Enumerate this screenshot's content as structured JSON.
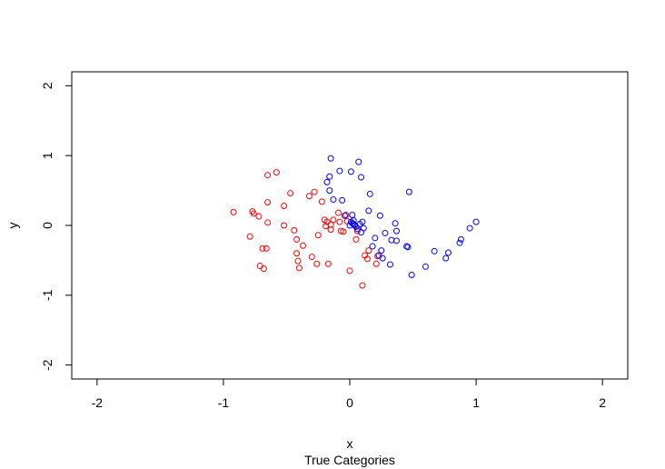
{
  "chart_data": {
    "type": "scatter",
    "xlabel": "x",
    "ylabel": "y",
    "subtitle": "True Categories",
    "xlim": [
      -2.2,
      2.2
    ],
    "ylim": [
      -2.2,
      2.2
    ],
    "xticks": [
      -2,
      -1,
      0,
      1,
      2
    ],
    "yticks": [
      -2,
      -1,
      0,
      1,
      2
    ],
    "xtick_labels": [
      "-2",
      "-1",
      "0",
      "1",
      "2"
    ],
    "ytick_labels": [
      "-2",
      "-1",
      "0",
      "1",
      "2"
    ],
    "grid": false,
    "series": [
      {
        "color": "#ff0000",
        "marker": "open-circle",
        "points": [
          [
            -0.92,
            0.19
          ],
          [
            -0.79,
            -0.16
          ],
          [
            -0.77,
            0.2
          ],
          [
            -0.76,
            0.17
          ],
          [
            -0.72,
            0.13
          ],
          [
            -0.71,
            -0.58
          ],
          [
            -0.68,
            -0.62
          ],
          [
            -0.69,
            -0.33
          ],
          [
            -0.66,
            -0.33
          ],
          [
            -0.65,
            0.72
          ],
          [
            -0.65,
            0.33
          ],
          [
            -0.65,
            0.04
          ],
          [
            -0.58,
            0.76
          ],
          [
            -0.52,
            0.28
          ],
          [
            -0.52,
            0.0
          ],
          [
            -0.47,
            0.46
          ],
          [
            -0.44,
            -0.07
          ],
          [
            -0.42,
            -0.2
          ],
          [
            -0.42,
            -0.4
          ],
          [
            -0.41,
            -0.51
          ],
          [
            -0.4,
            -0.61
          ],
          [
            -0.37,
            -0.29
          ],
          [
            -0.32,
            0.42
          ],
          [
            -0.3,
            -0.45
          ],
          [
            -0.28,
            0.48
          ],
          [
            -0.26,
            -0.55
          ],
          [
            -0.25,
            -0.14
          ],
          [
            -0.22,
            0.34
          ],
          [
            -0.2,
            0.08
          ],
          [
            -0.19,
            -0.01
          ],
          [
            -0.18,
            0.05
          ],
          [
            -0.17,
            -0.55
          ],
          [
            -0.15,
            0.01
          ],
          [
            -0.15,
            -0.06
          ],
          [
            -0.13,
            0.08
          ],
          [
            -0.09,
            0.18
          ],
          [
            -0.08,
            0.05
          ],
          [
            -0.07,
            -0.08
          ],
          [
            -0.05,
            -0.09
          ],
          [
            -0.03,
            0.15
          ],
          [
            -0.02,
            0.06
          ],
          [
            0.0,
            -0.65
          ],
          [
            0.05,
            -0.2
          ],
          [
            0.06,
            -0.08
          ],
          [
            0.1,
            -0.86
          ],
          [
            0.12,
            -0.43
          ],
          [
            0.14,
            -0.48
          ],
          [
            0.15,
            -0.36
          ],
          [
            0.21,
            -0.55
          ],
          [
            0.22,
            -0.44
          ]
        ]
      },
      {
        "color": "#0000ff",
        "marker": "open-circle",
        "points": [
          [
            -0.15,
            0.96
          ],
          [
            -0.08,
            0.78
          ],
          [
            0.01,
            0.77
          ],
          [
            0.07,
            0.91
          ],
          [
            0.09,
            0.69
          ],
          [
            -0.16,
            0.7
          ],
          [
            -0.18,
            0.62
          ],
          [
            -0.16,
            0.5
          ],
          [
            -0.13,
            0.37
          ],
          [
            -0.06,
            0.36
          ],
          [
            0.16,
            0.45
          ],
          [
            0.47,
            0.48
          ],
          [
            -0.04,
            0.14
          ],
          [
            0.01,
            0.05
          ],
          [
            0.02,
            0.15
          ],
          [
            0.03,
            0.07
          ],
          [
            0.03,
            0.02
          ],
          [
            0.04,
            0.0
          ],
          [
            0.05,
            -0.02
          ],
          [
            0.06,
            -0.05
          ],
          [
            0.08,
            0.02
          ],
          [
            0.09,
            -0.1
          ],
          [
            0.1,
            0.05
          ],
          [
            0.11,
            -0.04
          ],
          [
            0.15,
            0.21
          ],
          [
            0.2,
            -0.18
          ],
          [
            0.23,
            -0.43
          ],
          [
            0.24,
            0.14
          ],
          [
            0.25,
            -0.36
          ],
          [
            0.26,
            -0.47
          ],
          [
            0.28,
            -0.11
          ],
          [
            0.32,
            -0.56
          ],
          [
            0.33,
            -0.21
          ],
          [
            0.36,
            0.03
          ],
          [
            0.37,
            -0.08
          ],
          [
            0.37,
            -0.22
          ],
          [
            0.45,
            -0.3
          ],
          [
            0.46,
            -0.31
          ],
          [
            0.49,
            -0.71
          ],
          [
            0.6,
            -0.59
          ],
          [
            0.67,
            -0.37
          ],
          [
            0.76,
            -0.47
          ],
          [
            0.78,
            -0.39
          ],
          [
            0.87,
            -0.25
          ],
          [
            0.88,
            -0.2
          ],
          [
            0.95,
            -0.04
          ],
          [
            1.0,
            0.05
          ],
          [
            0.18,
            -0.3
          ],
          [
            0.02,
            0.03
          ],
          [
            0.0,
            0.0
          ]
        ]
      }
    ]
  }
}
